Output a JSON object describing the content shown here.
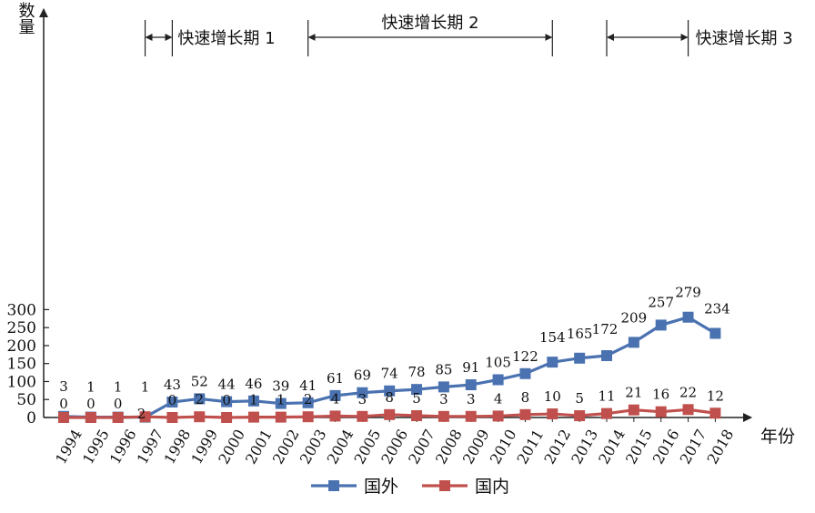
{
  "chart_data": {
    "type": "line",
    "ylabel": "数量",
    "xlabel": "年份",
    "categories": [
      "1994",
      "1995",
      "1996",
      "1997",
      "1998",
      "1999",
      "2000",
      "2001",
      "2002",
      "2003",
      "2004",
      "2005",
      "2006",
      "2007",
      "2008",
      "2009",
      "2010",
      "2011",
      "2012",
      "2013",
      "2014",
      "2015",
      "2016",
      "2017",
      "2018"
    ],
    "ylim": [
      0,
      300
    ],
    "yticks": [
      "0",
      "50",
      "100",
      "150",
      "200",
      "250",
      "300"
    ],
    "series": [
      {
        "name": "国外",
        "color": "#4a72b0",
        "values": [
          3,
          1,
          1,
          1,
          43,
          52,
          44,
          46,
          39,
          41,
          61,
          69,
          74,
          78,
          85,
          91,
          105,
          122,
          154,
          165,
          172,
          209,
          257,
          279,
          234
        ]
      },
      {
        "name": "国内",
        "color": "#c0504d",
        "values": [
          0,
          0,
          0,
          2,
          0,
          2,
          0,
          1,
          1,
          2,
          4,
          3,
          8,
          5,
          3,
          3,
          4,
          8,
          10,
          5,
          11,
          21,
          16,
          22,
          12
        ]
      }
    ],
    "periods": [
      {
        "label": "快速增长期 1",
        "start": "1997",
        "end": "1998"
      },
      {
        "label": "快速增长期 2",
        "start": "2003",
        "end": "2012"
      },
      {
        "label": "快速增长期 3",
        "start": "2014",
        "end": "2017"
      }
    ],
    "legend": "bottom",
    "grid": false
  }
}
